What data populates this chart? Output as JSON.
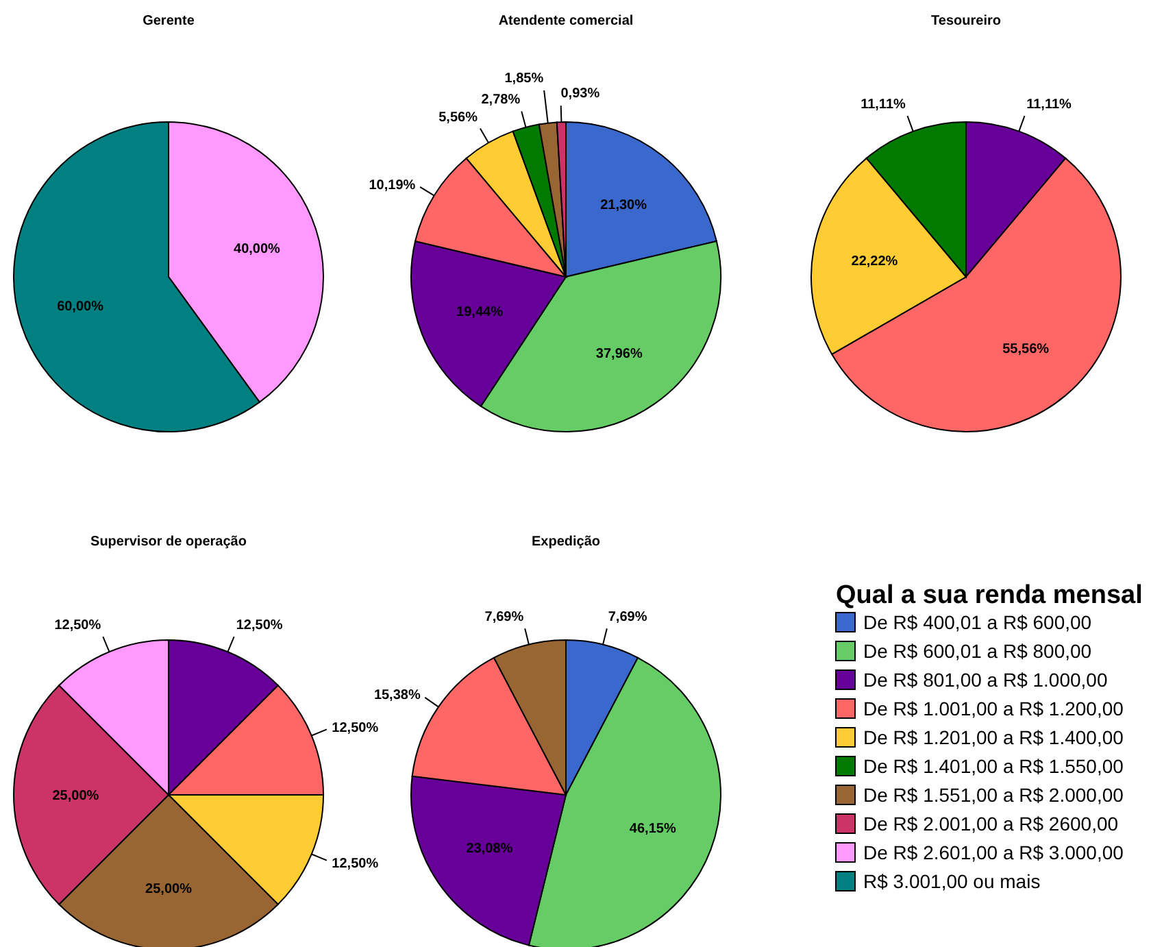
{
  "chart_data": [
    {
      "type": "pie",
      "title": "Gerente",
      "categories": [
        null,
        null
      ],
      "values": [
        40,
        60
      ],
      "value_labels": [
        "40,00%",
        "60,00%"
      ],
      "colors": [
        "#ff99ff",
        "#008080"
      ]
    },
    {
      "type": "pie",
      "title": "Atendente comercial",
      "categories": [
        null,
        null,
        null,
        null,
        null,
        null,
        null,
        null
      ],
      "values": [
        21.3,
        37.96,
        19.44,
        10.19,
        5.56,
        2.78,
        1.85,
        0.93
      ],
      "value_labels": [
        "21,30%",
        "37,96%",
        "19,44%",
        "10,19%",
        "5,56%",
        "2,78%",
        "1,85%",
        "0,93%"
      ],
      "colors": [
        "#3a68cc",
        "#66cc66",
        "#660099",
        "#ff6666",
        "#ffcc33",
        "#007a00",
        "#996633",
        "#cc3366"
      ]
    },
    {
      "type": "pie",
      "title": "Tesoureiro",
      "categories": [
        null,
        null,
        null,
        null
      ],
      "values": [
        11.11,
        55.56,
        22.22,
        11.11
      ],
      "value_labels": [
        "11,11%",
        "55,56%",
        "22,22%",
        "11,11%"
      ],
      "colors": [
        "#660099",
        "#ff6666",
        "#ffcc33",
        "#007a00"
      ]
    },
    {
      "type": "pie",
      "title": "Supervisor de operação",
      "categories": [
        null,
        null,
        null,
        null,
        null,
        null
      ],
      "values": [
        12.5,
        12.5,
        12.5,
        25,
        25,
        12.5
      ],
      "value_labels": [
        "12,50%",
        "12,50%",
        "12,50%",
        "25,00%",
        "25,00%",
        "12,50%"
      ],
      "colors": [
        "#660099",
        "#ff6666",
        "#ffcc33",
        "#996633",
        "#cc3366",
        "#ff99ff"
      ]
    },
    {
      "type": "pie",
      "title": "Expedição",
      "categories": [
        null,
        null,
        null,
        null,
        null
      ],
      "values": [
        7.69,
        46.15,
        23.08,
        15.38,
        7.69
      ],
      "value_labels": [
        "7,69%",
        "46,15%",
        "23,08%",
        "15,38%",
        "7,69%"
      ],
      "colors": [
        "#3a68cc",
        "#66cc66",
        "#660099",
        "#ff6666",
        "#996633"
      ]
    },
    {
      "type": "other",
      "title": "Qual a sua renda mensal",
      "categories": [
        "De R$ 400,01 a R$ 600,00",
        "De R$ 600,01 a R$ 800,00",
        "De R$ 801,00 a R$ 1.000,00",
        "De R$ 1.001,00 a R$ 1.200,00",
        "De R$ 1.201,00 a R$ 1.400,00",
        "De R$ 1.401,00 a R$ 1.550,00",
        "De R$ 1.551,00 a R$ 2.000,00",
        "De R$ 2.001,00 a R$ 2600,00",
        "De R$ 2.601,00 a R$ 3.000,00",
        "R$ 3.001,00 ou mais"
      ],
      "colors": [
        "#3a68cc",
        "#66cc66",
        "#660099",
        "#ff6666",
        "#ffcc33",
        "#007a00",
        "#996633",
        "#cc3366",
        "#ff99ff",
        "#008080"
      ]
    }
  ]
}
